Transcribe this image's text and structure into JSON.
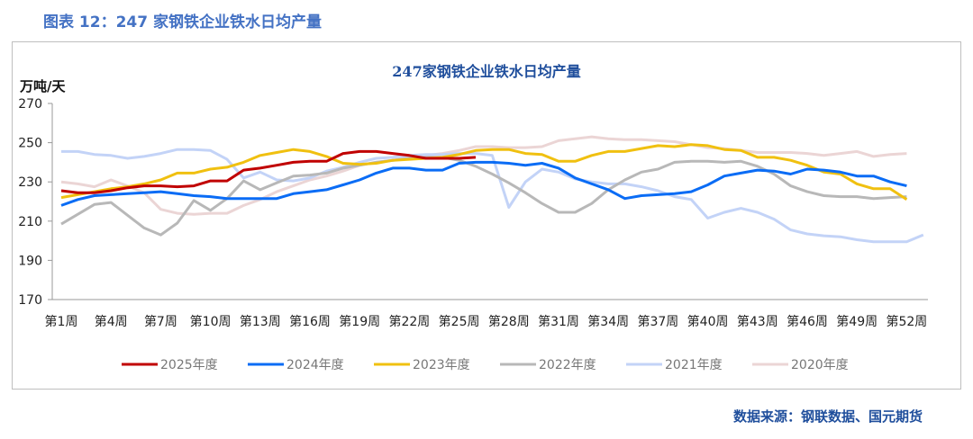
{
  "figure_title": "图表 12：247 家钢铁企业铁水日均产量",
  "source": "数据来源：钢联数据、国元期货",
  "chart_data": {
    "type": "line",
    "title": "247家钢铁企业铁水日均产量",
    "ylabel": "万吨/天",
    "xlabel": "",
    "ylim": [
      170,
      270
    ],
    "yticks": [
      170,
      190,
      210,
      230,
      250,
      270
    ],
    "x_tick_labels": [
      "第1周",
      "第4周",
      "第7周",
      "第10周",
      "第13周",
      "第16周",
      "第19周",
      "第22周",
      "第25周",
      "第28周",
      "第31周",
      "第34周",
      "第37周",
      "第40周",
      "第43周",
      "第46周",
      "第49周",
      "第52周"
    ],
    "x_tick_weeks": [
      1,
      4,
      7,
      10,
      13,
      16,
      19,
      22,
      25,
      28,
      31,
      34,
      37,
      40,
      43,
      46,
      49,
      52
    ],
    "grid": false,
    "legend_position": "bottom",
    "series": [
      {
        "name": "2025年度",
        "color": "#C00000",
        "values": [
          225.5,
          224.5,
          224.5,
          225.5,
          227,
          228,
          228,
          227.5,
          228,
          230.5,
          230.5,
          236,
          237,
          238.5,
          240,
          240.5,
          240.5,
          244.5,
          245.5,
          245.5,
          244.5,
          243.5,
          242,
          242,
          242,
          242.5
        ]
      },
      {
        "name": "2024年度",
        "color": "#0A6CF5",
        "values": [
          218,
          221,
          223,
          223.5,
          224,
          224.5,
          225,
          224,
          223,
          222.5,
          221.5,
          221.5,
          221.5,
          221.5,
          224,
          225,
          226,
          228.5,
          231,
          234.5,
          237,
          237,
          236,
          236,
          239.5,
          240,
          240,
          239.5,
          238.5,
          239.5,
          237,
          232,
          229,
          226,
          221.5,
          223,
          223.5,
          224,
          225,
          228.5,
          233,
          234.5,
          236,
          235.5,
          234,
          236.5,
          236,
          235,
          233,
          233,
          230,
          228
        ]
      },
      {
        "name": "2023年度",
        "color": "#F0C010",
        "values": [
          222,
          223.5,
          225,
          226.5,
          227.5,
          229,
          231,
          234.5,
          234.5,
          236.5,
          237.5,
          240,
          243.5,
          245,
          246.5,
          245.5,
          243,
          239.5,
          239,
          239.5,
          241,
          241.5,
          242,
          242.5,
          244,
          246,
          246.5,
          246.5,
          244.5,
          244,
          240.5,
          240.5,
          243.5,
          245.5,
          245.5,
          247,
          248.5,
          248,
          249,
          248.5,
          246.5,
          246,
          242.5,
          242.5,
          241,
          238.5,
          235,
          234,
          229,
          226.5,
          226.5,
          221
        ]
      },
      {
        "name": "2022年度",
        "color": "#B8B8B8",
        "values": [
          208.5,
          213.5,
          218.5,
          219.5,
          213,
          206.5,
          203,
          209,
          220.5,
          215.5,
          221.5,
          230.5,
          226,
          229.5,
          233,
          233.5,
          234.5,
          237,
          238.5,
          240,
          241,
          242,
          242.5,
          242.5,
          241,
          238,
          234,
          229.5,
          224.5,
          219,
          214.5,
          214.5,
          219,
          226,
          231,
          235,
          236.5,
          240,
          240.5,
          240.5,
          240,
          240.5,
          238,
          234,
          228,
          225,
          223,
          222.5,
          222.5,
          221.5,
          222,
          222.5
        ]
      },
      {
        "name": "2021年度",
        "color": "#C3D3F7",
        "values": [
          245.5,
          245.5,
          244,
          243.5,
          242,
          243,
          244.5,
          246.5,
          246.5,
          246,
          241.5,
          232,
          235,
          231,
          230.5,
          232,
          235.5,
          237.5,
          240,
          242,
          242.5,
          243.5,
          244,
          244,
          244.5,
          244.5,
          243.5,
          217,
          230,
          236.5,
          235,
          231.5,
          230,
          229,
          229,
          227.5,
          225.5,
          222.5,
          221,
          211.5,
          214.5,
          216.5,
          214.5,
          211,
          205.5,
          203.5,
          202.5,
          202,
          200.5,
          199.5,
          199.5,
          199.5,
          203
        ]
      },
      {
        "name": "2020年度",
        "color": "#EBD5D5",
        "values": [
          230,
          229,
          227.5,
          231,
          228,
          224.5,
          216,
          214,
          213.5,
          214,
          214,
          218,
          221,
          225,
          228,
          231,
          233,
          235.5,
          238.5,
          240,
          241,
          242.5,
          243.5,
          244.5,
          246,
          248,
          248,
          247.5,
          247.5,
          248,
          251,
          252,
          253,
          252,
          251.5,
          251.5,
          251,
          250.5,
          249,
          247.5,
          247,
          246,
          245,
          245,
          245,
          244.5,
          243.5,
          244.5,
          245.5,
          243,
          244,
          244.5
        ]
      }
    ]
  }
}
